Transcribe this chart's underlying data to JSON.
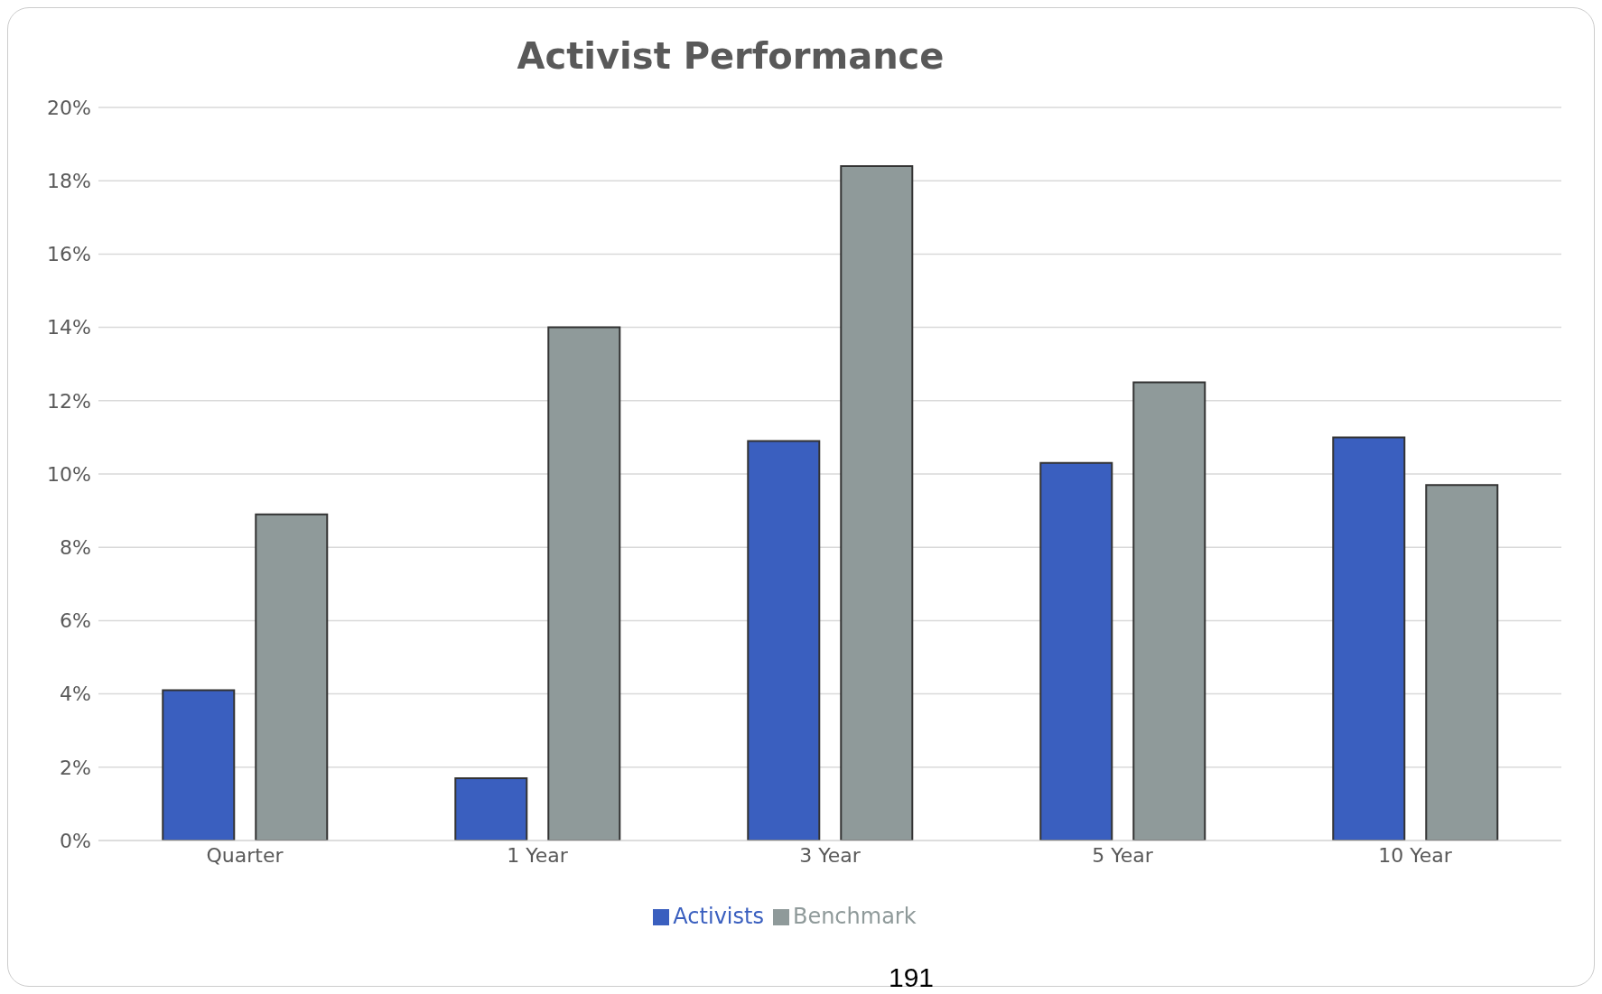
{
  "chart_data": {
    "type": "bar",
    "title": "Activist Performance",
    "categories": [
      "Quarter",
      "1 Year",
      "3 Year",
      "5 Year",
      "10 Year"
    ],
    "series": [
      {
        "name": "Activists",
        "color": "#3a5fbf",
        "values": [
          4.1,
          1.7,
          10.9,
          10.3,
          11.0
        ]
      },
      {
        "name": "Benchmark",
        "color": "#8f9a9a",
        "values": [
          8.9,
          14.0,
          18.4,
          12.5,
          9.7
        ]
      }
    ],
    "ylim": [
      0,
      20
    ],
    "yticks": [
      {
        "value": 0,
        "label": "0%"
      },
      {
        "value": 2,
        "label": "2%"
      },
      {
        "value": 4,
        "label": "4%"
      },
      {
        "value": 6,
        "label": "6%"
      },
      {
        "value": 8,
        "label": "8%"
      },
      {
        "value": 10,
        "label": "10%"
      },
      {
        "value": 12,
        "label": "12%"
      },
      {
        "value": 14,
        "label": "14%"
      },
      {
        "value": 16,
        "label": "16%"
      },
      {
        "value": 18,
        "label": "18%"
      },
      {
        "value": 20,
        "label": "20%"
      }
    ],
    "grid": "y",
    "legend": "bottom",
    "annotations": [
      "191"
    ]
  }
}
